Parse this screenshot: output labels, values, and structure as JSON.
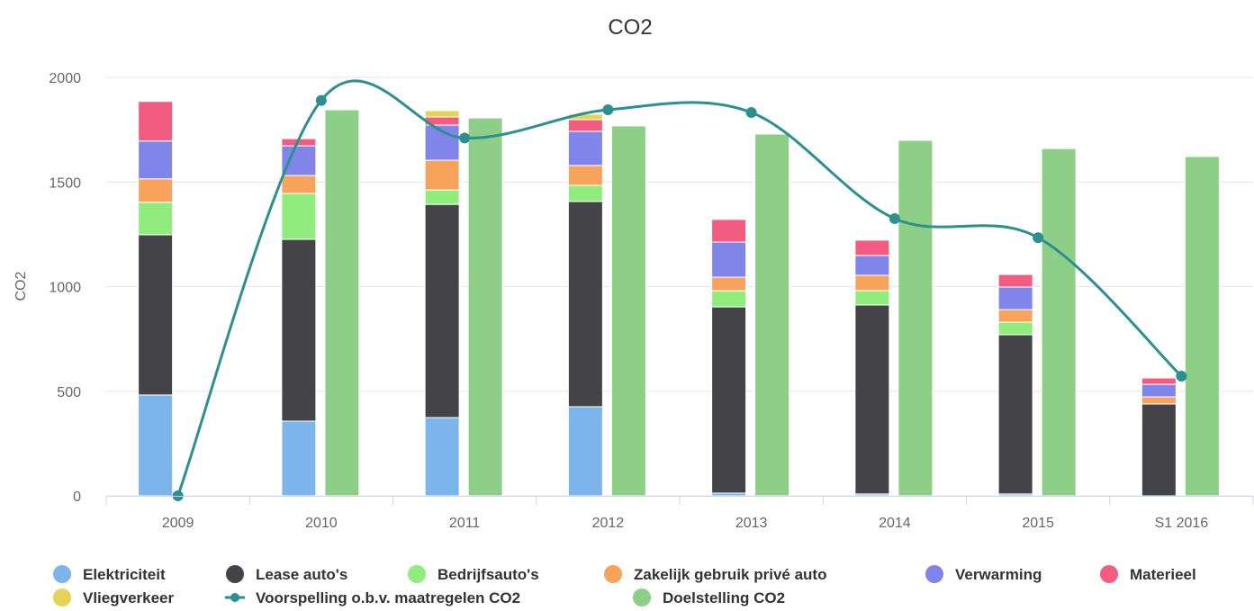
{
  "chart_data": {
    "type": "bar",
    "title": "CO2",
    "y_label": "CO2",
    "categories": [
      "2009",
      "2010",
      "2011",
      "2012",
      "2013",
      "2014",
      "2015",
      "S1 2016"
    ],
    "ylim": [
      0,
      2000
    ],
    "yticks": [
      0,
      500,
      1000,
      1500,
      2000
    ],
    "grid": true,
    "legend": "bottom",
    "series": [
      {
        "name": "Elektriciteit",
        "color": "#7cb5ec",
        "type": "bar",
        "stacked": true,
        "values": [
          482,
          357,
          374,
          426,
          13,
          9,
          9,
          0
        ]
      },
      {
        "name": "Lease auto's",
        "color": "#434348",
        "type": "bar",
        "stacked": true,
        "values": [
          766,
          869,
          1019,
          981,
          890,
          903,
          761,
          439
        ]
      },
      {
        "name": "Bedrijfsauto's",
        "color": "#90ed7d",
        "type": "bar",
        "stacked": true,
        "values": [
          155,
          219,
          69,
          77,
          77,
          69,
          60,
          0
        ]
      },
      {
        "name": "Zakelijk gebruik privé auto",
        "color": "#f7a35c",
        "type": "bar",
        "stacked": true,
        "values": [
          112,
          86,
          142,
          95,
          65,
          73,
          60,
          34
        ]
      },
      {
        "name": "Verwarming",
        "color": "#8085e9",
        "type": "bar",
        "stacked": true,
        "values": [
          181,
          142,
          168,
          163,
          168,
          95,
          108,
          60
        ]
      },
      {
        "name": "Materieel",
        "color": "#f15c80",
        "type": "bar",
        "stacked": true,
        "values": [
          189,
          34,
          39,
          56,
          108,
          73,
          60,
          30
        ]
      },
      {
        "name": "Vliegverkeer",
        "color": "#e4d354",
        "type": "bar",
        "stacked": true,
        "values": [
          0,
          0,
          30,
          26,
          0,
          0,
          0,
          0
        ]
      },
      {
        "name": "Voorspelling o.b.v. maatregelen CO2",
        "color": "#2b908f",
        "type": "line",
        "values": [
          0,
          1890,
          1710,
          1845,
          1832,
          1325,
          1234,
          572
        ]
      },
      {
        "name": "Doelstelling CO2",
        "color": "#8ecf88",
        "type": "bar",
        "stacked": false,
        "values": [
          null,
          1845,
          1806,
          1768,
          1729,
          1699,
          1660,
          1622
        ]
      }
    ]
  }
}
